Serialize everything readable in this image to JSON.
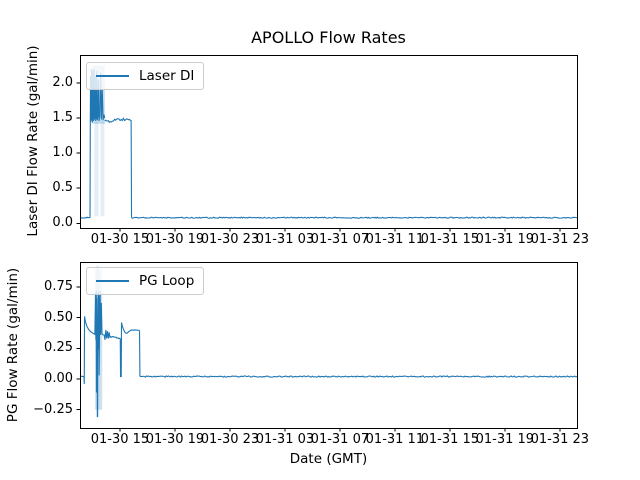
{
  "figure": {
    "title": "APOLLO Flow Rates",
    "xlabel": "Date (GMT)",
    "line_color": "#1f77b4",
    "background": "#ffffff",
    "x_encoding": "hours since 01-30 12:00 GMT"
  },
  "chart_data": [
    {
      "type": "line",
      "legend": "Laser DI",
      "ylabel": "Laser DI Flow Rate (gal/min)",
      "legend_position": "upper left",
      "grid": false,
      "xlim": [
        0,
        36.16
      ],
      "ylim": [
        -0.067,
        2.4
      ],
      "xticks": [
        {
          "t": 2.91,
          "label": "01-30 15"
        },
        {
          "t": 6.91,
          "label": "01-30 19"
        },
        {
          "t": 10.91,
          "label": "01-30 23"
        },
        {
          "t": 14.91,
          "label": "01-31 03"
        },
        {
          "t": 18.91,
          "label": "01-31 07"
        },
        {
          "t": 22.91,
          "label": "01-31 11"
        },
        {
          "t": 26.91,
          "label": "01-31 15"
        },
        {
          "t": 30.91,
          "label": "01-31 19"
        },
        {
          "t": 34.91,
          "label": "01-31 23"
        }
      ],
      "yticks": [
        {
          "v": 0.0,
          "label": "0.0"
        },
        {
          "v": 0.5,
          "label": "0.5"
        },
        {
          "v": 1.0,
          "label": "1.0"
        },
        {
          "v": 1.5,
          "label": "1.5"
        },
        {
          "v": 2.0,
          "label": "2.0"
        }
      ],
      "segments": [
        {
          "noise": 0.008,
          "points": [
            [
              0,
              0.08
            ],
            [
              0.73,
              0.08
            ]
          ]
        },
        {
          "noise": 0,
          "points": [
            [
              0.73,
              0.08
            ],
            [
              0.75,
              1.52
            ],
            [
              0.77,
              2.1
            ],
            [
              0.79,
              1.45
            ],
            [
              0.81,
              1.5
            ],
            [
              0.83,
              2.2
            ],
            [
              0.85,
              1.47
            ],
            [
              0.88,
              1.95
            ],
            [
              0.9,
              1.44
            ],
            [
              0.93,
              2.18
            ],
            [
              0.96,
              1.5
            ],
            [
              0.99,
              1.46
            ],
            [
              1.02,
              2.2
            ],
            [
              1.05,
              1.48
            ],
            [
              1.08,
              1.6
            ],
            [
              1.11,
              2.1
            ],
            [
              1.14,
              1.46
            ],
            [
              1.18,
              1.5
            ],
            [
              1.22,
              2.17
            ],
            [
              1.26,
              1.47
            ],
            [
              1.3,
              1.55
            ],
            [
              1.34,
              2.05
            ],
            [
              1.38,
              1.46
            ],
            [
              1.44,
              1.52
            ],
            [
              1.5,
              2.15
            ],
            [
              1.56,
              1.48
            ],
            [
              1.62,
              1.9
            ],
            [
              1.68,
              1.47
            ],
            [
              1.74,
              1.55
            ],
            [
              1.8,
              1.5
            ]
          ]
        },
        {
          "noise": 0.02,
          "points": [
            [
              1.8,
              1.46
            ],
            [
              2.2,
              1.45
            ],
            [
              2.6,
              1.47
            ],
            [
              3.0,
              1.48
            ],
            [
              3.4,
              1.49
            ],
            [
              3.72,
              1.47
            ]
          ]
        },
        {
          "noise": 0,
          "points": [
            [
              3.72,
              1.47
            ],
            [
              3.75,
              0.08
            ]
          ]
        },
        {
          "noise": 0.008,
          "points": [
            [
              3.75,
              0.08
            ],
            [
              36.16,
              0.08
            ]
          ]
        }
      ],
      "dense_bands": [
        {
          "t0": 0.85,
          "t1": 1.8,
          "v0": 1.42,
          "v1": 2.25,
          "alpha": 0.25
        },
        {
          "t0": 1.05,
          "t1": 1.35,
          "v0": 0.1,
          "v1": 1.45,
          "alpha": 0.12
        },
        {
          "t0": 1.5,
          "t1": 1.78,
          "v0": 0.1,
          "v1": 1.45,
          "alpha": 0.12
        }
      ]
    },
    {
      "type": "line",
      "legend": "PG Loop",
      "ylabel": "PG Flow Rate (gal/min)",
      "legend_position": "upper left",
      "grid": false,
      "xlim": [
        0,
        36.16
      ],
      "ylim": [
        -0.399,
        0.953
      ],
      "xticks": [
        {
          "t": 2.91,
          "label": "01-30 15"
        },
        {
          "t": 6.91,
          "label": "01-30 19"
        },
        {
          "t": 10.91,
          "label": "01-30 23"
        },
        {
          "t": 14.91,
          "label": "01-31 03"
        },
        {
          "t": 18.91,
          "label": "01-31 07"
        },
        {
          "t": 22.91,
          "label": "01-31 11"
        },
        {
          "t": 26.91,
          "label": "01-31 15"
        },
        {
          "t": 30.91,
          "label": "01-31 19"
        },
        {
          "t": 34.91,
          "label": "01-31 23"
        }
      ],
      "yticks": [
        {
          "v": -0.25,
          "label": "−0.25"
        },
        {
          "v": 0.0,
          "label": "0.00"
        },
        {
          "v": 0.25,
          "label": "0.25"
        },
        {
          "v": 0.5,
          "label": "0.50"
        },
        {
          "v": 0.75,
          "label": "0.75"
        }
      ],
      "segments": [
        {
          "noise": 0.005,
          "points": [
            [
              0,
              0.02
            ],
            [
              0.29,
              0.02
            ]
          ]
        },
        {
          "noise": 0,
          "points": [
            [
              0.29,
              0.02
            ],
            [
              0.31,
              -0.04
            ],
            [
              0.33,
              0.51
            ],
            [
              0.4,
              0.465
            ],
            [
              0.5,
              0.43
            ],
            [
              0.62,
              0.405
            ],
            [
              0.78,
              0.385
            ],
            [
              0.95,
              0.372
            ],
            [
              1.08,
              0.365
            ]
          ]
        },
        {
          "noise": 0,
          "points": [
            [
              1.08,
              0.36
            ],
            [
              1.13,
              0.7
            ],
            [
              1.16,
              0.32
            ],
            [
              1.18,
              0.72
            ],
            [
              1.2,
              -0.11
            ],
            [
              1.22,
              0.66
            ],
            [
              1.25,
              0.36
            ],
            [
              1.27,
              -0.31
            ],
            [
              1.29,
              0.52
            ],
            [
              1.31,
              0.36
            ],
            [
              1.33,
              0.71
            ],
            [
              1.35,
              0.24
            ],
            [
              1.37,
              0.69
            ],
            [
              1.39,
              0.03
            ],
            [
              1.42,
              0.37
            ],
            [
              1.46,
              0.72
            ],
            [
              1.5,
              0.36
            ],
            [
              1.55,
              0.62
            ],
            [
              1.6,
              0.37
            ],
            [
              1.65,
              0.36
            ]
          ]
        },
        {
          "noise": 0.006,
          "points": [
            [
              1.65,
              0.36
            ],
            [
              1.75,
              0.36
            ],
            [
              1.82,
              0.32
            ],
            [
              1.88,
              0.4
            ],
            [
              1.94,
              0.33
            ],
            [
              2.0,
              0.39
            ],
            [
              2.06,
              0.33
            ],
            [
              2.12,
              0.38
            ],
            [
              2.18,
              0.34
            ],
            [
              2.35,
              0.345
            ],
            [
              2.55,
              0.34
            ],
            [
              2.75,
              0.335
            ],
            [
              2.93,
              0.33
            ]
          ]
        },
        {
          "noise": 0,
          "points": [
            [
              2.93,
              0.33
            ],
            [
              2.95,
              0.02
            ],
            [
              3.0,
              0.02
            ],
            [
              3.02,
              0.46
            ],
            [
              3.08,
              0.43
            ],
            [
              3.18,
              0.4
            ],
            [
              3.28,
              0.378
            ],
            [
              3.4,
              0.372
            ],
            [
              3.55,
              0.385
            ],
            [
              3.7,
              0.398
            ],
            [
              3.95,
              0.4
            ],
            [
              4.2,
              0.398
            ],
            [
              4.33,
              0.395
            ]
          ]
        },
        {
          "noise": 0,
          "points": [
            [
              4.33,
              0.395
            ],
            [
              4.36,
              0.02
            ]
          ]
        },
        {
          "noise": 0.005,
          "points": [
            [
              4.36,
              0.02
            ],
            [
              36.16,
              0.02
            ]
          ]
        }
      ],
      "dense_bands": [
        {
          "t0": 1.1,
          "t1": 1.62,
          "v0": -0.25,
          "v1": 0.9,
          "alpha": 0.22
        },
        {
          "t0": 1.18,
          "t1": 1.4,
          "v0": -0.31,
          "v1": 0.92,
          "alpha": 0.18
        }
      ]
    }
  ]
}
